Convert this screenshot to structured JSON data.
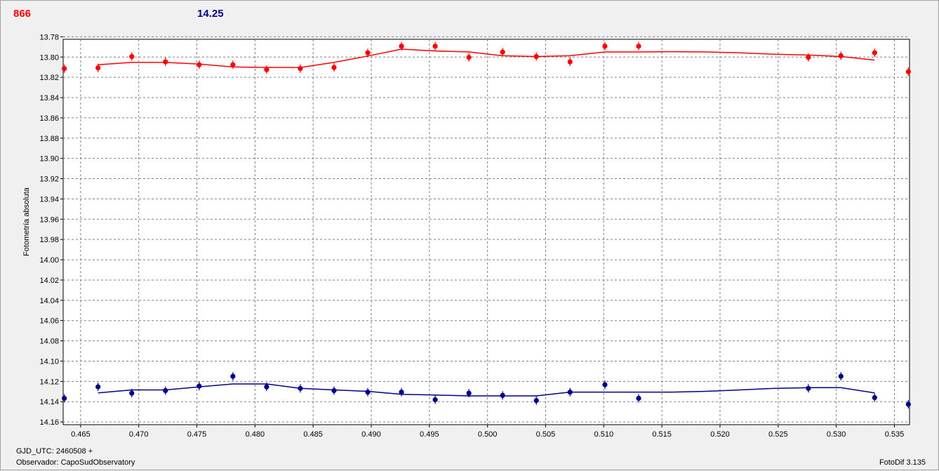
{
  "header": {
    "value_red": "866",
    "value_blue": "14.25"
  },
  "footer": {
    "gjd": "GJD_UTC: 2460508 +",
    "observer": "Observador: CapoSudObservatory",
    "version": "FotoDif 3.135"
  },
  "colors": {
    "red": "#ff0000",
    "blue": "#00008b",
    "grid": "#808080"
  },
  "chart_data": {
    "type": "scatter",
    "ylabel": "Fotometría absoluta",
    "xlabel": "",
    "xlim": [
      0.4635,
      0.5363
    ],
    "ylim": [
      13.7825,
      14.1627
    ],
    "y_inverted": true,
    "grid": true,
    "x_ticks": [
      "0.465",
      "0.470",
      "0.475",
      "0.480",
      "0.485",
      "0.490",
      "0.495",
      "0.500",
      "0.505",
      "0.510",
      "0.515",
      "0.520",
      "0.525",
      "0.530",
      "0.535"
    ],
    "y_ticks": [
      "13.78",
      "13.80",
      "13.82",
      "13.84",
      "13.86",
      "13.88",
      "13.90",
      "13.92",
      "13.94",
      "13.96",
      "13.98",
      "14.00",
      "14.02",
      "14.04",
      "14.06",
      "14.08",
      "14.10",
      "14.12",
      "14.14",
      "14.16"
    ],
    "series": [
      {
        "color": "#ff0000",
        "points": [
          [
            0.4636,
            13.8114
          ],
          [
            0.4665,
            13.8107
          ],
          [
            0.4694,
            13.7995
          ],
          [
            0.4723,
            13.8047
          ],
          [
            0.4752,
            13.8076
          ],
          [
            0.4781,
            13.8076
          ],
          [
            0.481,
            13.8124
          ],
          [
            0.4839,
            13.8114
          ],
          [
            0.4868,
            13.8103
          ],
          [
            0.4897,
            13.7958
          ],
          [
            0.4926,
            13.7893
          ],
          [
            0.4955,
            13.7893
          ],
          [
            0.4984,
            13.8003
          ],
          [
            0.5013,
            13.795
          ],
          [
            0.5042,
            13.7995
          ],
          [
            0.5071,
            13.8047
          ],
          [
            0.5101,
            13.7893
          ],
          [
            0.513,
            13.7893
          ],
          [
            0.5276,
            13.8003
          ],
          [
            0.5304,
            13.7987
          ],
          [
            0.5333,
            13.7958
          ],
          [
            0.5362,
            13.8144
          ]
        ],
        "fit": [
          [
            0.4665,
            13.8076
          ],
          [
            0.4694,
            13.8053
          ],
          [
            0.4723,
            13.8053
          ],
          [
            0.4752,
            13.8069
          ],
          [
            0.4781,
            13.8098
          ],
          [
            0.481,
            13.8103
          ],
          [
            0.4839,
            13.8103
          ],
          [
            0.4868,
            13.8053
          ],
          [
            0.4897,
            13.799
          ],
          [
            0.4926,
            13.7922
          ],
          [
            0.4955,
            13.794
          ],
          [
            0.4984,
            13.795
          ],
          [
            0.5013,
            13.7987
          ],
          [
            0.5042,
            13.7995
          ],
          [
            0.5071,
            13.7987
          ],
          [
            0.5101,
            13.795
          ],
          [
            0.513,
            13.795
          ],
          [
            0.5159,
            13.7947
          ],
          [
            0.5188,
            13.795
          ],
          [
            0.5217,
            13.7958
          ],
          [
            0.5247,
            13.7972
          ],
          [
            0.5276,
            13.798
          ],
          [
            0.5304,
            13.7995
          ],
          [
            0.5333,
            13.803
          ]
        ]
      },
      {
        "color": "#00008b",
        "points": [
          [
            0.4636,
            14.1367
          ],
          [
            0.4665,
            14.1254
          ],
          [
            0.4694,
            14.1316
          ],
          [
            0.4723,
            14.1291
          ],
          [
            0.4752,
            14.1247
          ],
          [
            0.4781,
            14.115
          ],
          [
            0.481,
            14.1254
          ],
          [
            0.4839,
            14.1269
          ],
          [
            0.4868,
            14.1291
          ],
          [
            0.4897,
            14.1306
          ],
          [
            0.4926,
            14.1306
          ],
          [
            0.4955,
            14.1381
          ],
          [
            0.4984,
            14.1316
          ],
          [
            0.5013,
            14.1338
          ],
          [
            0.5042,
            14.1389
          ],
          [
            0.5071,
            14.1306
          ],
          [
            0.5101,
            14.1233
          ],
          [
            0.513,
            14.1367
          ],
          [
            0.5276,
            14.1269
          ],
          [
            0.5304,
            14.115
          ],
          [
            0.5333,
            14.136
          ],
          [
            0.5362,
            14.1426
          ]
        ],
        "fit": [
          [
            0.4665,
            14.1313
          ],
          [
            0.4694,
            14.1284
          ],
          [
            0.4723,
            14.1284
          ],
          [
            0.4752,
            14.1254
          ],
          [
            0.4781,
            14.1225
          ],
          [
            0.481,
            14.1225
          ],
          [
            0.4839,
            14.1269
          ],
          [
            0.4868,
            14.1284
          ],
          [
            0.4897,
            14.1298
          ],
          [
            0.4926,
            14.1327
          ],
          [
            0.4955,
            14.1335
          ],
          [
            0.4984,
            14.1343
          ],
          [
            0.5013,
            14.1343
          ],
          [
            0.5042,
            14.1343
          ],
          [
            0.5071,
            14.1306
          ],
          [
            0.5101,
            14.1306
          ],
          [
            0.513,
            14.1306
          ],
          [
            0.5159,
            14.1306
          ],
          [
            0.5188,
            14.1298
          ],
          [
            0.5217,
            14.1284
          ],
          [
            0.5247,
            14.1269
          ],
          [
            0.5276,
            14.1262
          ],
          [
            0.5304,
            14.1262
          ],
          [
            0.5333,
            14.1313
          ]
        ]
      }
    ]
  }
}
